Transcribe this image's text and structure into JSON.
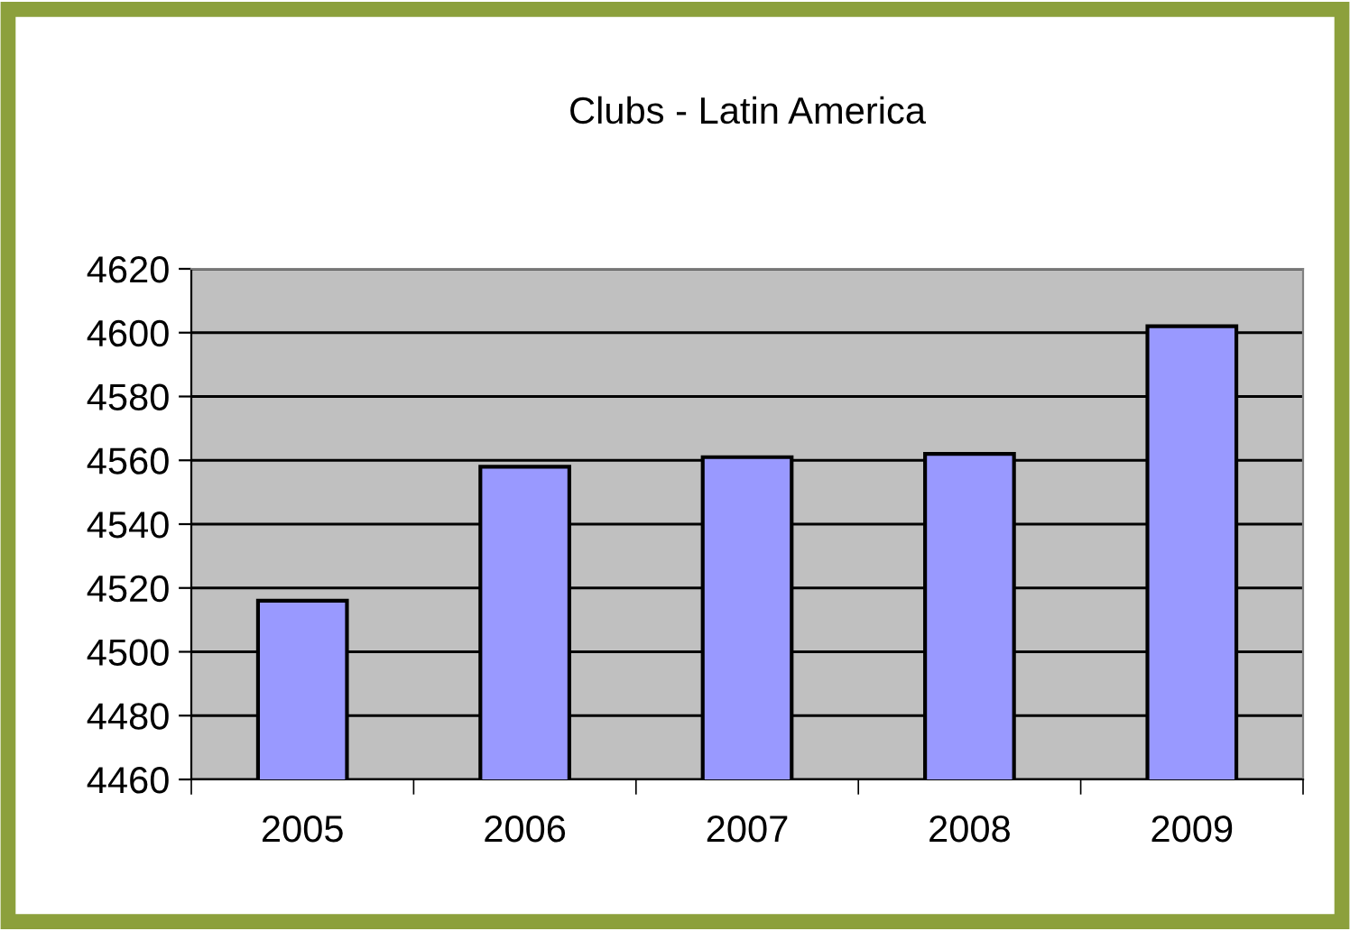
{
  "chart_data": {
    "type": "bar",
    "title": "Clubs - Latin America",
    "categories": [
      "2005",
      "2006",
      "2007",
      "2008",
      "2009"
    ],
    "values": [
      4516,
      4558,
      4561,
      4562,
      4602
    ],
    "color": "#9999ff",
    "ylim": [
      4460,
      4620
    ],
    "yticks": [
      4460,
      4480,
      4500,
      4520,
      4540,
      4560,
      4580,
      4600,
      4620
    ],
    "grid": "y",
    "legend": false
  }
}
